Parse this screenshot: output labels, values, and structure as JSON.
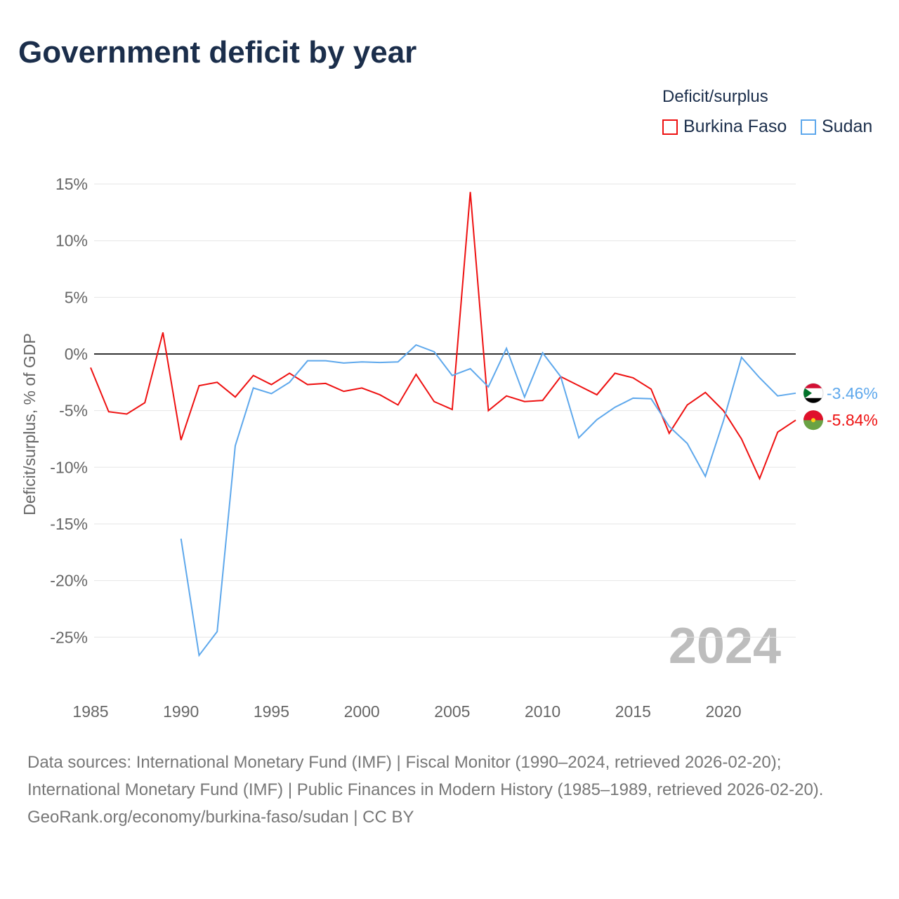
{
  "title": "Government deficit by year",
  "legend": {
    "title": "Deficit/surplus",
    "items": [
      "Burkina Faso",
      "Sudan"
    ]
  },
  "year_label": "2024",
  "sources": "Data sources: International Monetary Fund (IMF) | Fiscal Monitor (1990–2024, retrieved 2026-02-20); International Monetary Fund (IMF) | Public Finances in Modern History (1985–1989, retrieved 2026-02-20).",
  "credit": "GeoRank.org/economy/burkina-faso/sudan | CC BY",
  "chart_data": {
    "type": "line",
    "title": "Government deficit by year",
    "xlabel": "",
    "ylabel": "Deficit/surplus, % of GDP",
    "xlim": [
      1985,
      2024
    ],
    "ylim": [
      -30,
      15
    ],
    "yticks": [
      15,
      10,
      5,
      0,
      -5,
      -10,
      -15,
      -20,
      -25
    ],
    "ytick_labels": [
      "15%",
      "10%",
      "5%",
      "0%",
      "-5%",
      "-10%",
      "-15%",
      "-20%",
      "-25%"
    ],
    "xticks": [
      1985,
      1990,
      1995,
      2000,
      2005,
      2010,
      2015,
      2020
    ],
    "xtick_labels": [
      "1985",
      "1990",
      "1995",
      "2000",
      "2005",
      "2010",
      "2015",
      "2020"
    ],
    "grid": true,
    "legend_position": "top-right",
    "series": [
      {
        "name": "Burkina Faso",
        "color": "#ee1111",
        "end_label": "-5.84%",
        "x": [
          1985,
          1986,
          1987,
          1988,
          1989,
          1990,
          1991,
          1992,
          1993,
          1994,
          1995,
          1996,
          1997,
          1998,
          1999,
          2000,
          2001,
          2002,
          2003,
          2004,
          2005,
          2006,
          2007,
          2008,
          2009,
          2010,
          2011,
          2012,
          2013,
          2014,
          2015,
          2016,
          2017,
          2018,
          2019,
          2020,
          2021,
          2022,
          2023,
          2024
        ],
        "values": [
          -1.2,
          -5.1,
          -5.3,
          -4.3,
          1.9,
          -7.6,
          -2.8,
          -2.5,
          -3.8,
          -1.9,
          -2.7,
          -1.7,
          -2.7,
          -2.6,
          -3.3,
          -3.0,
          -3.6,
          -4.5,
          -1.8,
          -4.2,
          -4.9,
          14.3,
          -5.0,
          -3.7,
          -4.2,
          -4.1,
          -2.0,
          -2.8,
          -3.6,
          -1.7,
          -2.1,
          -3.1,
          -7.0,
          -4.5,
          -3.4,
          -5.0,
          -7.5,
          -11.0,
          -6.9,
          -5.84
        ]
      },
      {
        "name": "Sudan",
        "color": "#5ea8ec",
        "end_label": "-3.46%",
        "x": [
          1990,
          1991,
          1992,
          1993,
          1994,
          1995,
          1996,
          1997,
          1998,
          1999,
          2000,
          2001,
          2002,
          2003,
          2004,
          2005,
          2006,
          2007,
          2008,
          2009,
          2010,
          2011,
          2012,
          2013,
          2014,
          2015,
          2016,
          2017,
          2018,
          2019,
          2020,
          2021,
          2022,
          2023,
          2024
        ],
        "values": [
          -16.3,
          -26.6,
          -24.5,
          -8.1,
          -3.0,
          -3.5,
          -2.5,
          -0.6,
          -0.6,
          -0.8,
          -0.7,
          -0.75,
          -0.7,
          0.8,
          0.2,
          -1.9,
          -1.3,
          -2.9,
          0.5,
          -3.8,
          0.1,
          -2.0,
          -7.4,
          -5.8,
          -4.7,
          -3.9,
          -3.95,
          -6.4,
          -7.9,
          -10.8,
          -5.9,
          -0.3,
          -2.1,
          -3.7,
          -3.46
        ]
      }
    ]
  }
}
